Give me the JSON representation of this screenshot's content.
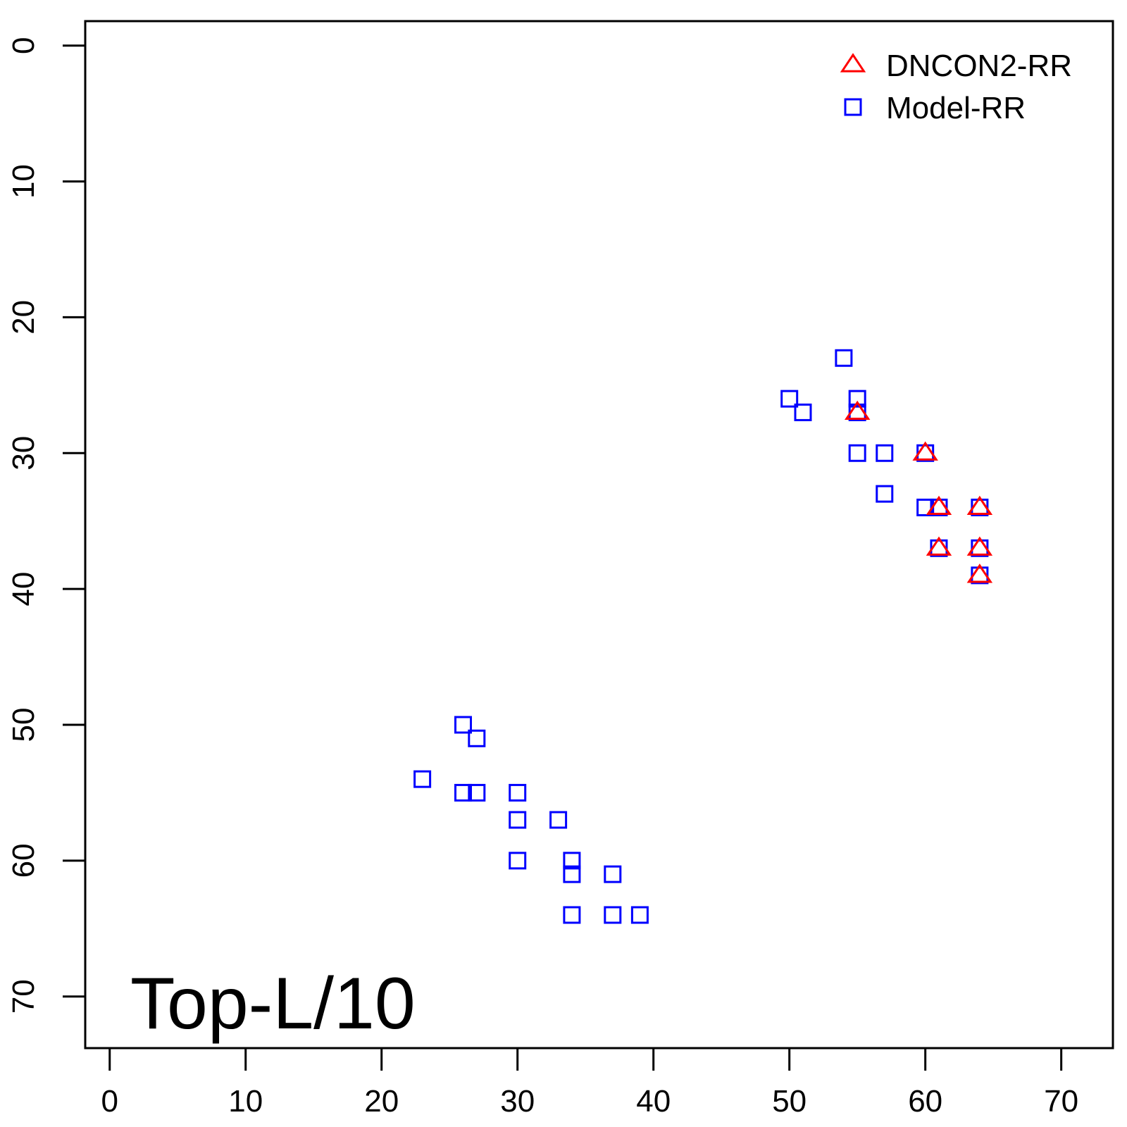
{
  "chart_data": {
    "type": "scatter",
    "title": "",
    "xlabel": "",
    "ylabel": "",
    "xlim": [
      -1.8,
      73.8
    ],
    "ylim": [
      -1.8,
      73.8
    ],
    "y_axis_inverted": true,
    "x_ticks": [
      "0",
      "10",
      "20",
      "30",
      "40",
      "50",
      "60",
      "70"
    ],
    "y_ticks": [
      "0",
      "10",
      "20",
      "30",
      "40",
      "50",
      "60",
      "70"
    ],
    "grid": false,
    "legend": {
      "position": "top-right"
    },
    "annotation": "Top-L/10",
    "series": [
      {
        "name": "DNCON2-RR",
        "marker": "triangle",
        "color": "#ff0000",
        "points": [
          [
            55,
            27
          ],
          [
            60,
            30
          ],
          [
            61,
            34
          ],
          [
            64,
            34
          ],
          [
            61,
            37
          ],
          [
            64,
            37
          ],
          [
            64,
            39
          ]
        ]
      },
      {
        "name": "Model-RR",
        "marker": "square",
        "color": "#0000ff",
        "points": [
          [
            54,
            23
          ],
          [
            50,
            26
          ],
          [
            55,
            26
          ],
          [
            51,
            27
          ],
          [
            55,
            27
          ],
          [
            55,
            30
          ],
          [
            57,
            30
          ],
          [
            60,
            30
          ],
          [
            57,
            33
          ],
          [
            60,
            34
          ],
          [
            61,
            34
          ],
          [
            64,
            34
          ],
          [
            61,
            37
          ],
          [
            64,
            37
          ],
          [
            64,
            39
          ],
          [
            26,
            50
          ],
          [
            27,
            51
          ],
          [
            23,
            54
          ],
          [
            26,
            55
          ],
          [
            27,
            55
          ],
          [
            30,
            55
          ],
          [
            30,
            57
          ],
          [
            33,
            57
          ],
          [
            30,
            60
          ],
          [
            34,
            60
          ],
          [
            34,
            61
          ],
          [
            37,
            61
          ],
          [
            34,
            64
          ],
          [
            37,
            64
          ],
          [
            39,
            64
          ]
        ]
      }
    ]
  }
}
